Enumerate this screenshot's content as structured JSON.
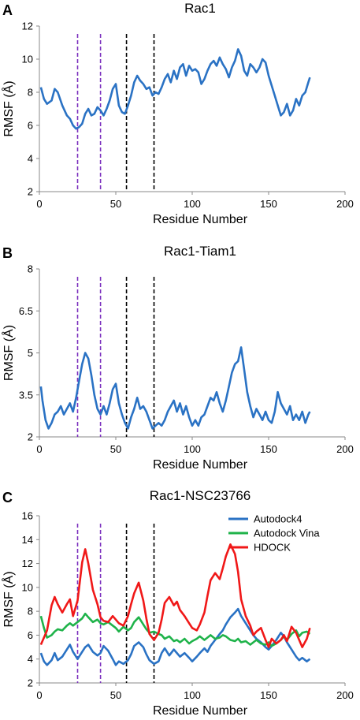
{
  "chart_data": [
    {
      "panel": "A",
      "type": "line",
      "title": "Rac1",
      "xlabel": "Residue Number",
      "ylabel": "RMSF (Å)",
      "xlim": [
        0,
        200
      ],
      "ylim": [
        2,
        12
      ],
      "xticks": [
        0,
        50,
        100,
        150,
        200
      ],
      "yticks": [
        2,
        4,
        6,
        8,
        10,
        12
      ],
      "vlines": [
        {
          "x": 25,
          "color": "#7b2fbe"
        },
        {
          "x": 40,
          "color": "#7b2fbe"
        },
        {
          "x": 57,
          "color": "#000000"
        },
        {
          "x": 75,
          "color": "#000000"
        }
      ],
      "series": [
        {
          "color": "#2a72c4",
          "x": [
            1,
            3,
            5,
            8,
            10,
            12,
            15,
            18,
            20,
            22,
            24,
            26,
            28,
            30,
            32,
            34,
            36,
            38,
            40,
            42,
            44,
            46,
            48,
            50,
            52,
            54,
            56,
            58,
            60,
            62,
            64,
            66,
            68,
            70,
            72,
            74,
            76,
            78,
            80,
            82,
            84,
            86,
            88,
            90,
            92,
            94,
            96,
            98,
            100,
            102,
            104,
            106,
            108,
            110,
            112,
            114,
            116,
            118,
            120,
            122,
            124,
            126,
            128,
            130,
            132,
            134,
            136,
            138,
            140,
            142,
            144,
            146,
            148,
            150,
            152,
            154,
            156,
            158,
            160,
            162,
            164,
            166,
            168,
            170,
            172,
            174,
            176,
            177
          ],
          "y": [
            8.3,
            7.6,
            7.3,
            7.5,
            8.2,
            8.0,
            7.2,
            6.6,
            6.4,
            6.0,
            5.8,
            5.9,
            6.1,
            6.7,
            7.0,
            6.6,
            6.7,
            7.1,
            6.9,
            6.6,
            7.0,
            7.5,
            8.2,
            8.5,
            7.2,
            6.8,
            6.7,
            7.2,
            7.8,
            8.6,
            9.0,
            8.7,
            8.5,
            8.2,
            8.3,
            7.8,
            8.0,
            7.9,
            8.3,
            8.8,
            9.1,
            8.6,
            9.3,
            8.8,
            9.5,
            9.7,
            9.0,
            9.6,
            9.3,
            9.4,
            9.2,
            8.5,
            8.8,
            9.3,
            9.7,
            9.9,
            9.6,
            10.1,
            9.7,
            9.4,
            8.9,
            9.5,
            9.9,
            10.6,
            10.2,
            9.3,
            9.0,
            9.7,
            9.5,
            9.2,
            9.5,
            10.0,
            9.8,
            9.0,
            8.4,
            7.8,
            7.2,
            6.6,
            6.8,
            7.3,
            6.6,
            6.9,
            7.6,
            7.2,
            7.8,
            8.0,
            8.6,
            8.9
          ]
        }
      ]
    },
    {
      "panel": "B",
      "type": "line",
      "title": "Rac1-Tiam1",
      "xlabel": "Residue Number",
      "ylabel": "RMSF (Å)",
      "xlim": [
        0,
        200
      ],
      "ylim": [
        2,
        8
      ],
      "xticks": [
        0,
        50,
        100,
        150,
        200
      ],
      "yticks": [
        2,
        3.5,
        5,
        6.5,
        8
      ],
      "vlines": [
        {
          "x": 25,
          "color": "#7b2fbe"
        },
        {
          "x": 40,
          "color": "#7b2fbe"
        },
        {
          "x": 57,
          "color": "#000000"
        },
        {
          "x": 75,
          "color": "#000000"
        }
      ],
      "series": [
        {
          "color": "#2a72c4",
          "x": [
            1,
            2,
            4,
            6,
            8,
            10,
            12,
            14,
            16,
            18,
            20,
            22,
            24,
            26,
            28,
            30,
            32,
            34,
            36,
            38,
            40,
            42,
            44,
            46,
            48,
            50,
            52,
            54,
            56,
            58,
            60,
            62,
            64,
            66,
            68,
            70,
            72,
            74,
            76,
            78,
            80,
            82,
            84,
            86,
            88,
            90,
            92,
            94,
            96,
            98,
            100,
            102,
            104,
            106,
            108,
            110,
            112,
            114,
            116,
            118,
            120,
            122,
            124,
            126,
            128,
            130,
            132,
            134,
            136,
            138,
            140,
            142,
            144,
            146,
            148,
            150,
            152,
            154,
            156,
            158,
            160,
            162,
            164,
            166,
            168,
            170,
            172,
            174,
            176,
            177
          ],
          "y": [
            3.8,
            3.3,
            2.6,
            2.3,
            2.5,
            2.8,
            2.9,
            3.1,
            2.8,
            3.0,
            3.2,
            2.9,
            3.4,
            4.0,
            4.6,
            5.0,
            4.8,
            4.2,
            3.5,
            3.0,
            2.8,
            3.1,
            2.8,
            3.2,
            3.7,
            3.9,
            3.2,
            2.8,
            2.5,
            2.3,
            2.7,
            3.0,
            3.4,
            3.0,
            3.1,
            2.9,
            2.6,
            2.3,
            2.4,
            2.5,
            2.4,
            2.6,
            2.9,
            3.1,
            3.3,
            2.9,
            3.2,
            2.8,
            3.1,
            2.7,
            2.4,
            2.6,
            2.4,
            2.7,
            2.8,
            3.1,
            3.4,
            3.3,
            3.6,
            3.2,
            2.9,
            3.3,
            3.8,
            4.3,
            4.6,
            4.7,
            5.2,
            4.4,
            3.6,
            3.1,
            2.7,
            3.0,
            2.8,
            2.6,
            2.9,
            2.6,
            2.5,
            2.9,
            3.6,
            3.2,
            3.0,
            2.8,
            3.1,
            2.6,
            2.8,
            2.6,
            2.9,
            2.5,
            2.8,
            2.9
          ]
        }
      ]
    },
    {
      "panel": "C",
      "type": "line",
      "title": "Rac1-NSC23766",
      "xlabel": "Residue Number",
      "ylabel": "RMSF (Å)",
      "xlim": [
        0,
        200
      ],
      "ylim": [
        2,
        16
      ],
      "xticks": [
        0,
        50,
        100,
        150,
        200
      ],
      "yticks": [
        2,
        4,
        6,
        8,
        10,
        12,
        14,
        16
      ],
      "legend_position": "top-right",
      "vlines": [
        {
          "x": 25,
          "color": "#7b2fbe"
        },
        {
          "x": 40,
          "color": "#7b2fbe"
        },
        {
          "x": 57,
          "color": "#000000"
        },
        {
          "x": 75,
          "color": "#000000"
        }
      ],
      "series": [
        {
          "name": "Autodock4",
          "color": "#2a72c4",
          "x": [
            1,
            3,
            5,
            8,
            10,
            12,
            15,
            18,
            20,
            22,
            25,
            28,
            30,
            32,
            35,
            38,
            40,
            42,
            45,
            48,
            50,
            52,
            55,
            58,
            60,
            62,
            65,
            68,
            70,
            72,
            75,
            78,
            80,
            82,
            85,
            88,
            90,
            92,
            95,
            98,
            100,
            103,
            105,
            108,
            110,
            112,
            115,
            118,
            120,
            122,
            125,
            128,
            130,
            132,
            135,
            138,
            140,
            142,
            145,
            148,
            150,
            152,
            155,
            158,
            160,
            162,
            165,
            168,
            170,
            172,
            175,
            177
          ],
          "y": [
            4.5,
            3.8,
            3.5,
            3.9,
            4.5,
            3.9,
            4.2,
            4.8,
            5.2,
            4.6,
            4.0,
            4.6,
            5.0,
            5.2,
            4.6,
            4.3,
            4.5,
            5.1,
            4.7,
            4.0,
            3.5,
            3.8,
            3.6,
            3.9,
            4.4,
            5.1,
            5.4,
            5.0,
            4.4,
            3.9,
            3.6,
            3.8,
            4.5,
            4.9,
            4.3,
            4.8,
            4.5,
            4.2,
            4.5,
            4.1,
            3.8,
            4.2,
            4.5,
            4.9,
            4.6,
            5.1,
            5.6,
            6.1,
            6.4,
            6.9,
            7.5,
            7.9,
            8.2,
            7.6,
            7.0,
            6.4,
            6.0,
            5.7,
            5.4,
            5.0,
            4.8,
            5.1,
            5.6,
            6.2,
            5.9,
            5.4,
            4.8,
            4.2,
            3.9,
            4.1,
            3.8,
            4.0
          ]
        },
        {
          "name": "Autodock Vina",
          "color": "#1fb34a",
          "x": [
            1,
            3,
            5,
            8,
            10,
            12,
            15,
            18,
            20,
            22,
            25,
            28,
            30,
            32,
            35,
            38,
            40,
            42,
            45,
            48,
            50,
            52,
            55,
            58,
            60,
            62,
            65,
            68,
            70,
            72,
            75,
            78,
            80,
            82,
            85,
            88,
            90,
            92,
            95,
            98,
            100,
            103,
            105,
            108,
            110,
            112,
            115,
            118,
            120,
            122,
            125,
            128,
            130,
            132,
            135,
            138,
            140,
            142,
            145,
            148,
            150,
            152,
            155,
            158,
            160,
            162,
            165,
            168,
            170,
            172,
            175,
            177
          ],
          "y": [
            7.6,
            6.6,
            5.8,
            6.0,
            6.3,
            6.5,
            6.4,
            6.8,
            7.0,
            6.8,
            7.1,
            7.4,
            7.8,
            7.5,
            7.1,
            7.3,
            7.0,
            6.9,
            7.1,
            6.8,
            6.6,
            6.3,
            6.7,
            6.4,
            6.6,
            7.1,
            7.5,
            6.9,
            6.5,
            6.2,
            6.3,
            6.1,
            6.0,
            5.7,
            5.9,
            5.5,
            5.6,
            5.4,
            5.7,
            5.3,
            5.5,
            5.7,
            5.9,
            5.6,
            5.8,
            6.0,
            5.7,
            5.8,
            6.0,
            5.9,
            5.6,
            5.5,
            5.7,
            5.4,
            5.5,
            5.2,
            5.4,
            5.6,
            5.3,
            5.2,
            5.4,
            5.1,
            5.3,
            5.6,
            5.9,
            5.6,
            6.1,
            6.4,
            5.9,
            6.2,
            6.3,
            6.1
          ]
        },
        {
          "name": "HDOCK",
          "color": "#f01818",
          "x": [
            1,
            3,
            5,
            8,
            10,
            12,
            15,
            18,
            20,
            22,
            25,
            28,
            30,
            32,
            35,
            38,
            40,
            42,
            45,
            48,
            50,
            52,
            55,
            58,
            60,
            62,
            65,
            68,
            70,
            72,
            75,
            78,
            80,
            82,
            85,
            88,
            90,
            92,
            95,
            98,
            100,
            103,
            105,
            108,
            110,
            112,
            115,
            118,
            120,
            122,
            125,
            128,
            130,
            132,
            135,
            138,
            140,
            142,
            145,
            148,
            150,
            152,
            155,
            158,
            160,
            162,
            165,
            168,
            170,
            172,
            175,
            177
          ],
          "y": [
            5.2,
            5.8,
            6.4,
            8.5,
            9.2,
            8.6,
            7.9,
            8.6,
            9.0,
            7.6,
            8.9,
            12.1,
            13.2,
            12.0,
            9.8,
            8.6,
            7.5,
            7.2,
            7.1,
            7.6,
            7.3,
            7.0,
            6.8,
            7.6,
            8.6,
            9.5,
            10.4,
            8.9,
            7.4,
            6.1,
            5.6,
            6.2,
            7.3,
            8.7,
            9.2,
            8.5,
            8.8,
            8.1,
            7.6,
            7.0,
            6.6,
            6.4,
            6.9,
            7.9,
            9.3,
            10.6,
            11.2,
            10.7,
            11.6,
            12.6,
            13.6,
            12.8,
            11.3,
            9.0,
            7.6,
            6.8,
            6.0,
            6.3,
            6.6,
            5.6,
            5.0,
            5.7,
            5.3,
            5.6,
            6.0,
            5.5,
            6.7,
            6.2,
            5.6,
            5.0,
            5.7,
            6.6
          ]
        }
      ]
    }
  ]
}
